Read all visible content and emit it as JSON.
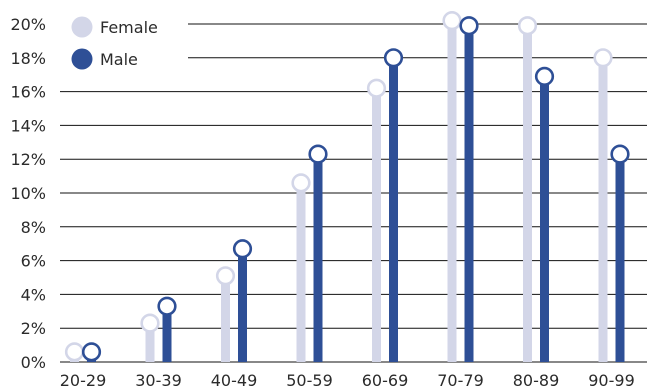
{
  "chart_data": {
    "type": "bar",
    "categories": [
      "20-29",
      "30-39",
      "40-49",
      "50-59",
      "60-69",
      "70-79",
      "80-89",
      "90-99"
    ],
    "series": [
      {
        "name": "Female",
        "color": "#d3d6e8",
        "values": [
          0.6,
          2.3,
          5.1,
          10.6,
          16.2,
          20.2,
          19.9,
          18.0
        ]
      },
      {
        "name": "Male",
        "color": "#2e4f96",
        "values": [
          0.6,
          3.3,
          6.7,
          12.3,
          18.0,
          19.9,
          16.9,
          12.3
        ]
      }
    ],
    "y_ticks": [
      "0%",
      "2%",
      "4%",
      "6%",
      "8%",
      "10%",
      "12%",
      "14%",
      "16%",
      "18%",
      "20%"
    ],
    "ylim": [
      0,
      20
    ],
    "grid": true,
    "legend": "top-left",
    "xlabel": "",
    "ylabel": ""
  }
}
